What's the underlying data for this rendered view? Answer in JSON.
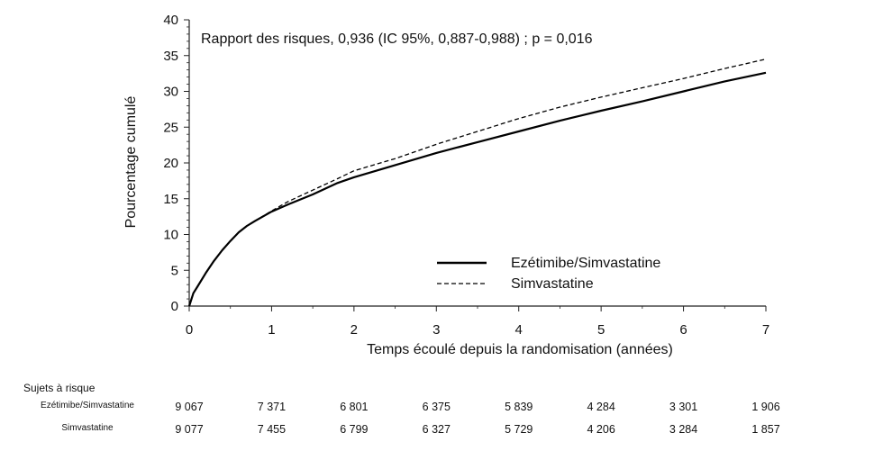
{
  "chart_data": {
    "type": "line",
    "annotation": "Rapport des risques, 0,936 (IC 95%, 0,887-0,988) ; p = 0,016",
    "xlabel": "Temps écoulé depuis la randomisation (années)",
    "ylabel": "Pourcentage cumulé",
    "xlim": [
      0,
      7
    ],
    "ylim": [
      0,
      40
    ],
    "xticks": [
      "0",
      "1",
      "2",
      "3",
      "4",
      "5",
      "6",
      "7"
    ],
    "yticks": [
      "0",
      "5",
      "10",
      "15",
      "20",
      "25",
      "30",
      "35",
      "40"
    ],
    "grid": false,
    "legend_position": "lower-right",
    "series": [
      {
        "name": "Ezétimibe/Simvastatine",
        "style": "solid",
        "x": [
          0,
          0.05,
          0.1,
          0.2,
          0.3,
          0.4,
          0.5,
          0.6,
          0.7,
          0.8,
          1.0,
          1.2,
          1.5,
          1.8,
          2.0,
          2.5,
          3.0,
          3.5,
          4.0,
          4.5,
          5.0,
          5.5,
          6.0,
          6.5,
          7.0
        ],
        "y": [
          0,
          1.8,
          2.7,
          4.6,
          6.3,
          7.8,
          9.1,
          10.3,
          11.2,
          11.9,
          13.2,
          14.2,
          15.6,
          17.2,
          18.0,
          19.7,
          21.4,
          22.9,
          24.4,
          25.9,
          27.3,
          28.6,
          30.0,
          31.4,
          32.6
        ]
      },
      {
        "name": "Simvastatine",
        "style": "dashed",
        "x": [
          0,
          0.05,
          0.1,
          0.2,
          0.3,
          0.4,
          0.5,
          0.6,
          0.7,
          0.8,
          1.0,
          1.2,
          1.5,
          1.8,
          2.0,
          2.5,
          3.0,
          3.5,
          4.0,
          4.5,
          5.0,
          5.5,
          6.0,
          6.5,
          7.0
        ],
        "y": [
          0,
          1.8,
          2.7,
          4.6,
          6.3,
          7.8,
          9.1,
          10.3,
          11.2,
          11.9,
          13.3,
          14.6,
          16.2,
          17.8,
          18.9,
          20.6,
          22.6,
          24.4,
          26.2,
          27.8,
          29.2,
          30.5,
          31.8,
          33.2,
          34.5
        ]
      }
    ],
    "risk_table": {
      "title": "Sujets à risque",
      "rows": [
        {
          "label": "Ezétimibe/Simvastatine",
          "values": [
            "9 067",
            "7 371",
            "6 801",
            "6 375",
            "5 839",
            "4 284",
            "3 301",
            "1 906"
          ]
        },
        {
          "label": "Simvastatine",
          "values": [
            "9 077",
            "7 455",
            "6 799",
            "6 327",
            "5 729",
            "4 206",
            "3 284",
            "1 857"
          ]
        }
      ]
    }
  }
}
